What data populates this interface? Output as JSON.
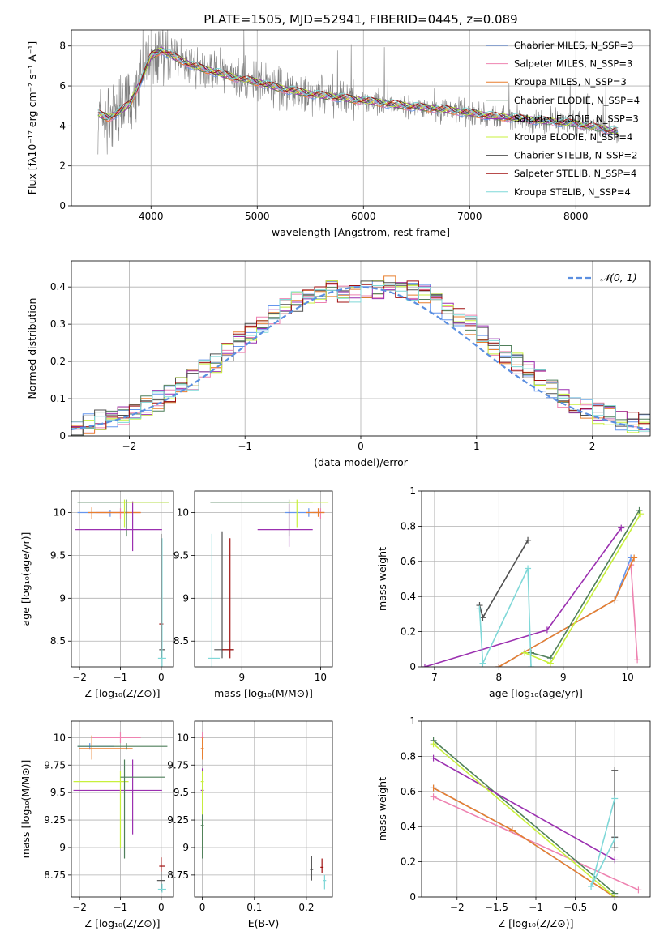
{
  "figure": {
    "title": "PLATE=1505, MJD=52941, FIBERID=0445, z=0.089"
  },
  "series_styles": {
    "names": [
      "Chabrier MILES",
      "Salpeter MILES",
      "Kroupa MILES",
      "Chabrier ELODIE",
      "Salpeter ELODIE",
      "Kroupa ELODIE",
      "Chabrier STELIB",
      "Salpeter STELIB",
      "Kroupa STELIB"
    ],
    "colors": [
      "#6495ed",
      "#ee82b0",
      "#e87f2e",
      "#4f7f5a",
      "#9b30b0",
      "#c8f03c",
      "#505050",
      "#a01010",
      "#7fd8d8"
    ]
  },
  "chart_data": [
    {
      "type": "line",
      "panel": "spectrum",
      "xlabel": "wavelength [Angstrom, rest frame]",
      "ylabel": "Flux [fλ10⁻¹⁷ erg cm⁻² s⁻¹ A⁻¹]",
      "xlim": [
        3250,
        8700
      ],
      "ylim": [
        0,
        8.8
      ],
      "xticks": [
        4000,
        5000,
        6000,
        7000,
        8000
      ],
      "yticks": [
        0,
        2,
        4,
        6,
        8
      ],
      "legend_position": "upper-right",
      "legend": [
        {
          "name": "Chabrier MILES",
          "nssp": "3",
          "color": "#6495ed"
        },
        {
          "name": "Salpeter MILES",
          "nssp": "3",
          "color": "#ee82b0"
        },
        {
          "name": "Kroupa MILES",
          "nssp": "3",
          "color": "#e87f2e"
        },
        {
          "name": "Chabrier ELODIE",
          "nssp": "4",
          "color": "#4f7f5a"
        },
        {
          "name": "Salpeter ELODIE",
          "nssp": "3",
          "color": "#9b30b0"
        },
        {
          "name": "Kroupa ELODIE",
          "nssp": "4",
          "color": "#c8f03c"
        },
        {
          "name": "Chabrier STELIB",
          "nssp": "2",
          "color": "#505050"
        },
        {
          "name": "Salpeter STELIB",
          "nssp": "4",
          "color": "#a01010"
        },
        {
          "name": "Kroupa STELIB",
          "nssp": "4",
          "color": "#7fd8d8"
        }
      ],
      "continuum": {
        "x": [
          3500,
          3600,
          3700,
          3800,
          3900,
          4000,
          4100,
          4200,
          4400,
          4600,
          4800,
          5000,
          5200,
          5500,
          5800,
          6100,
          6400,
          6800,
          7200,
          7600,
          8000,
          8400
        ],
        "y": [
          4.6,
          4.4,
          4.7,
          5.1,
          6.2,
          7.5,
          7.8,
          7.5,
          7.0,
          6.7,
          6.4,
          6.2,
          5.9,
          5.6,
          5.4,
          5.2,
          5.0,
          4.8,
          4.5,
          4.3,
          4.1,
          3.7
        ]
      }
    },
    {
      "type": "histogram",
      "panel": "residuals",
      "xlabel": "(data-model)/error",
      "ylabel": "Normed distribution",
      "xlim": [
        -2.5,
        2.5
      ],
      "ylim": [
        0,
        0.47
      ],
      "xticks": [
        -2,
        -1,
        0,
        1,
        2
      ],
      "yticks": [
        0.0,
        0.1,
        0.2,
        0.3,
        0.4
      ],
      "bin_width": 0.1,
      "reference_curve": {
        "label": "𝒩(0, 1)",
        "mu": 0,
        "sigma": 1,
        "color": "#5b8fe0"
      },
      "legend_position": "upper-right",
      "envelope": [
        0.025,
        0.03,
        0.04,
        0.048,
        0.058,
        0.068,
        0.08,
        0.095,
        0.112,
        0.13,
        0.15,
        0.175,
        0.195,
        0.22,
        0.25,
        0.275,
        0.3,
        0.32,
        0.345,
        0.36,
        0.375,
        0.385,
        0.39,
        0.385,
        0.38,
        0.39,
        0.395,
        0.4,
        0.395,
        0.39,
        0.38,
        0.36,
        0.34,
        0.32,
        0.3,
        0.27,
        0.245,
        0.22,
        0.195,
        0.17,
        0.15,
        0.125,
        0.105,
        0.09,
        0.075,
        0.062,
        0.052,
        0.042,
        0.036,
        0.03
      ]
    },
    {
      "type": "errorbar",
      "panel": "age-vs-Z",
      "xlabel": "Z [log₁₀(Z/Z⊙)]",
      "ylabel": "age  [log₁₀(age/yr)]",
      "xlim": [
        -2.2,
        0.3
      ],
      "ylim": [
        8.2,
        10.25
      ],
      "xticks": [
        -2,
        -1,
        0
      ],
      "yticks": [
        8.5,
        9.0,
        9.5,
        10.0
      ],
      "points": [
        {
          "c": 0,
          "x": -1.25,
          "xerr": [
            0.8,
            0.45
          ],
          "y": 10.0,
          "yerr": [
            0.05,
            0.03
          ]
        },
        {
          "c": 1,
          "x": -1.0,
          "xerr": [
            0.6,
            0.5
          ],
          "y": 10.0,
          "yerr": [
            0.08,
            0.05
          ]
        },
        {
          "c": 2,
          "x": -1.7,
          "xerr": [
            0.1,
            1.2
          ],
          "y": 10.0,
          "yerr": [
            0.08,
            0.06
          ]
        },
        {
          "c": 3,
          "x": -0.85,
          "xerr": [
            1.2,
            1.05
          ],
          "y": 10.12,
          "yerr": [
            0.4,
            0.03
          ]
        },
        {
          "c": 4,
          "x": -0.7,
          "xerr": [
            1.4,
            0.72
          ],
          "y": 9.8,
          "yerr": [
            0.25,
            0.33
          ]
        },
        {
          "c": 5,
          "x": -0.9,
          "xerr": [
            0.1,
            1.1
          ],
          "y": 10.12,
          "yerr": [
            0.3,
            0.03
          ]
        },
        {
          "c": 6,
          "x": 0.0,
          "xerr": [
            0.05,
            0.1
          ],
          "y": 8.4,
          "yerr": [
            0.1,
            1.35
          ]
        },
        {
          "c": 7,
          "x": 0.0,
          "xerr": [
            0.05,
            0.05
          ],
          "y": 8.7,
          "yerr": [
            0.3,
            1.0
          ]
        },
        {
          "c": 8,
          "x": 0.02,
          "xerr": [
            0.1,
            0.1
          ],
          "y": 8.3,
          "yerr": [
            0.1,
            1.4
          ]
        }
      ]
    },
    {
      "type": "errorbar",
      "panel": "age-vs-mass",
      "xlabel": "mass [log₁₀(M/M⊙)]",
      "ylabel": "",
      "xlim": [
        8.4,
        10.15
      ],
      "ylim": [
        8.2,
        10.25
      ],
      "xticks": [
        9,
        10
      ],
      "yticks": [
        8.5,
        9.0,
        9.5,
        10.0
      ],
      "points": [
        {
          "c": 0,
          "x": 9.85,
          "xerr": [
            0.3,
            0.15
          ],
          "y": 10.0,
          "yerr": [
            0.05,
            0.05
          ]
        },
        {
          "c": 1,
          "x": 10.0,
          "xerr": [
            0.1,
            0.05
          ],
          "y": 10.0,
          "yerr": [
            0.08,
            0.05
          ]
        },
        {
          "c": 2,
          "x": 9.97,
          "xerr": [
            0.15,
            0.08
          ],
          "y": 10.0,
          "yerr": [
            0.05,
            0.05
          ]
        },
        {
          "c": 3,
          "x": 9.6,
          "xerr": [
            1.0,
            0.3
          ],
          "y": 10.12,
          "yerr": [
            0.4,
            0.03
          ]
        },
        {
          "c": 4,
          "x": 9.6,
          "xerr": [
            0.4,
            0.3
          ],
          "y": 9.8,
          "yerr": [
            0.2,
            0.3
          ]
        },
        {
          "c": 5,
          "x": 9.7,
          "xerr": [
            0.1,
            0.4
          ],
          "y": 10.12,
          "yerr": [
            0.3,
            0.03
          ]
        },
        {
          "c": 6,
          "x": 8.75,
          "xerr": [
            0.1,
            0.15
          ],
          "y": 8.4,
          "yerr": [
            0.1,
            1.38
          ]
        },
        {
          "c": 7,
          "x": 8.85,
          "xerr": [
            0.1,
            0.05
          ],
          "y": 8.4,
          "yerr": [
            0.1,
            1.3
          ]
        },
        {
          "c": 8,
          "x": 8.62,
          "xerr": [
            0.05,
            0.1
          ],
          "y": 8.3,
          "yerr": [
            0.1,
            1.45
          ]
        }
      ]
    },
    {
      "type": "line",
      "panel": "massweight-vs-age",
      "xlabel": "age  [log₁₀(age/yr)]",
      "ylabel": "mass weight",
      "xlim": [
        6.8,
        10.35
      ],
      "ylim": [
        0,
        1.0
      ],
      "xticks": [
        7,
        8,
        9,
        10
      ],
      "yticks": [
        0.0,
        0.2,
        0.4,
        0.6,
        0.8,
        1.0
      ],
      "series": [
        {
          "c": 0,
          "x": [
            8.0,
            9.8,
            10.05
          ],
          "y": [
            0.0,
            0.38,
            0.62
          ]
        },
        {
          "c": 1,
          "x": [
            10.05,
            10.15
          ],
          "y": [
            0.58,
            0.04
          ]
        },
        {
          "c": 2,
          "x": [
            8.0,
            9.8,
            10.1
          ],
          "y": [
            0.0,
            0.38,
            0.62
          ]
        },
        {
          "c": 3,
          "x": [
            8.5,
            8.8,
            10.18
          ],
          "y": [
            0.08,
            0.05,
            0.89
          ]
        },
        {
          "c": 4,
          "x": [
            6.85,
            8.75,
            9.9
          ],
          "y": [
            0.0,
            0.21,
            0.79
          ]
        },
        {
          "c": 5,
          "x": [
            8.4,
            8.8,
            10.2
          ],
          "y": [
            0.08,
            0.02,
            0.87
          ]
        },
        {
          "c": 6,
          "x": [
            7.7,
            7.75,
            8.45
          ],
          "y": [
            0.35,
            0.28,
            0.72
          ]
        },
        {
          "c": 8,
          "x": [
            7.7,
            7.75,
            8.45,
            8.5
          ],
          "y": [
            0.33,
            0.02,
            0.56,
            0.0
          ]
        }
      ]
    },
    {
      "type": "errorbar",
      "panel": "mass-vs-Z",
      "xlabel": "Z [log₁₀(Z/Z⊙)]",
      "ylabel": "mass [log₁₀(M/M⊙)]",
      "xlim": [
        -2.2,
        0.3
      ],
      "ylim": [
        8.55,
        10.15
      ],
      "xticks": [
        -2,
        -1,
        0
      ],
      "yticks": [
        8.75,
        9.0,
        9.25,
        9.5,
        9.75,
        10.0
      ],
      "points": [
        {
          "c": 0,
          "x": -1.75,
          "xerr": [
            0.3,
            0.6
          ],
          "y": 9.92,
          "yerr": [
            0.03,
            0.03
          ]
        },
        {
          "c": 1,
          "x": -1.0,
          "xerr": [
            0.7,
            0.5
          ],
          "y": 10.0,
          "yerr": [
            0.05,
            0.05
          ]
        },
        {
          "c": 2,
          "x": -1.7,
          "xerr": [
            0.3,
            1.0
          ],
          "y": 9.9,
          "yerr": [
            0.1,
            0.12
          ]
        },
        {
          "c": 3,
          "x": -0.85,
          "xerr": [
            1.2,
            1.0
          ],
          "y": 9.92,
          "yerr": [
            0.03,
            0.03
          ]
        },
        {
          "c": 4,
          "x": -0.7,
          "xerr": [
            1.45,
            0.72
          ],
          "y": 9.52,
          "yerr": [
            0.4,
            0.28
          ]
        },
        {
          "c": 5,
          "x": -1.0,
          "xerr": [
            1.15,
            0.2
          ],
          "y": 9.6,
          "yerr": [
            0.6,
            0.1
          ]
        },
        {
          "c": 3,
          "x": -0.9,
          "xerr": [
            0.1,
            1.0
          ],
          "y": 9.64,
          "yerr": [
            0.74,
            0.16
          ]
        },
        {
          "c": 6,
          "x": 0.0,
          "xerr": [
            0.1,
            0.1
          ],
          "y": 8.7,
          "yerr": [
            0.1,
            0.15
          ]
        },
        {
          "c": 7,
          "x": 0.0,
          "xerr": [
            0.05,
            0.1
          ],
          "y": 8.83,
          "yerr": [
            0.05,
            0.08
          ]
        },
        {
          "c": 8,
          "x": 0.02,
          "xerr": [
            0.1,
            0.1
          ],
          "y": 8.62,
          "yerr": [
            0.03,
            0.05
          ]
        }
      ]
    },
    {
      "type": "errorbar",
      "panel": "mass-vs-EBV",
      "xlabel": "E(B-V)",
      "ylabel": "",
      "xlim": [
        -0.015,
        0.25
      ],
      "ylim": [
        8.55,
        10.15
      ],
      "xticks": [
        0.0,
        0.1,
        0.2
      ],
      "yticks": [
        8.75,
        9.0,
        9.25,
        9.5,
        9.75,
        10.0
      ],
      "points": [
        {
          "c": 1,
          "x": 0.0,
          "xerr": [
            0.003,
            0.003
          ],
          "y": 10.0,
          "yerr": [
            0.05,
            0.05
          ]
        },
        {
          "c": 2,
          "x": 0.0,
          "xerr": [
            0.003,
            0.003
          ],
          "y": 9.9,
          "yerr": [
            0.1,
            0.1
          ]
        },
        {
          "c": 4,
          "x": 0.0,
          "xerr": [
            0.003,
            0.003
          ],
          "y": 9.52,
          "yerr": [
            0.2,
            0.2
          ]
        },
        {
          "c": 5,
          "x": 0.0,
          "xerr": [
            0.003,
            0.003
          ],
          "y": 9.6,
          "yerr": [
            0.6,
            0.1
          ]
        },
        {
          "c": 3,
          "x": 0.0,
          "xerr": [
            0.003,
            0.003
          ],
          "y": 9.2,
          "yerr": [
            0.3,
            0.1
          ]
        },
        {
          "c": 6,
          "x": 0.21,
          "xerr": [
            0.003,
            0.003
          ],
          "y": 8.8,
          "yerr": [
            0.1,
            0.12
          ]
        },
        {
          "c": 7,
          "x": 0.23,
          "xerr": [
            0.003,
            0.003
          ],
          "y": 8.82,
          "yerr": [
            0.05,
            0.08
          ]
        },
        {
          "c": 8,
          "x": 0.235,
          "xerr": [
            0.003,
            0.003
          ],
          "y": 8.7,
          "yerr": [
            0.08,
            0.05
          ]
        }
      ]
    },
    {
      "type": "line",
      "panel": "massweight-vs-Z",
      "xlabel": "Z [log₁₀(Z/Z⊙)]",
      "ylabel": "mass weight",
      "xlim": [
        -2.45,
        0.45
      ],
      "ylim": [
        0,
        1.0
      ],
      "xticks": [
        -2.0,
        -1.5,
        -1.0,
        -0.5,
        0.0
      ],
      "yticks": [
        0.0,
        0.2,
        0.4,
        0.6,
        0.8,
        1.0
      ],
      "series": [
        {
          "c": 0,
          "x": [
            -2.3,
            -1.3,
            0.0
          ],
          "y": [
            0.62,
            0.38,
            0.0
          ]
        },
        {
          "c": 1,
          "x": [
            -2.3,
            0.3
          ],
          "y": [
            0.57,
            0.04
          ]
        },
        {
          "c": 2,
          "x": [
            -2.3,
            -1.3,
            0.0
          ],
          "y": [
            0.62,
            0.38,
            0.0
          ]
        },
        {
          "c": 3,
          "x": [
            -2.3,
            0.0
          ],
          "y": [
            0.89,
            0.02
          ]
        },
        {
          "c": 4,
          "x": [
            -2.3,
            0.0
          ],
          "y": [
            0.79,
            0.21
          ]
        },
        {
          "c": 5,
          "x": [
            -2.3,
            0.0
          ],
          "y": [
            0.87,
            0.0
          ]
        },
        {
          "c": 6,
          "x": [
            0.0,
            0.0,
            0.0
          ],
          "y": [
            0.72,
            0.34,
            0.28
          ]
        },
        {
          "c": 8,
          "x": [
            0.0,
            -0.3,
            0.0
          ],
          "y": [
            0.56,
            0.06,
            0.33
          ]
        }
      ]
    }
  ]
}
